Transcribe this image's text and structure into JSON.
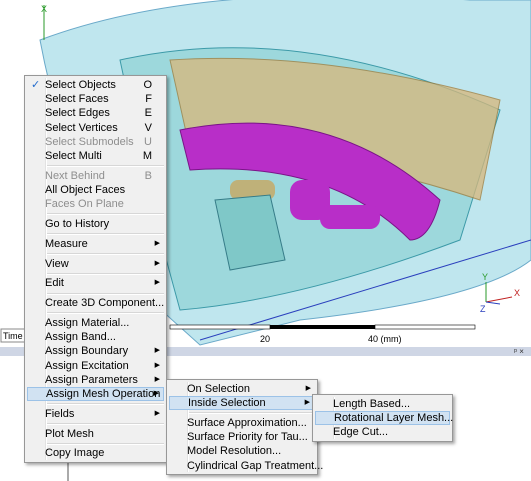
{
  "viewport": {
    "axis_labels": [
      "X",
      "Y",
      "X",
      "Z"
    ],
    "scale_labels": [
      "20",
      "40 (mm)"
    ],
    "status_label": "Time"
  },
  "context_menu": {
    "groups": [
      [
        {
          "label": "Select Objects",
          "shortcut": "O",
          "checked": true
        },
        {
          "label": "Select Faces",
          "shortcut": "F"
        },
        {
          "label": "Select Edges",
          "shortcut": "E"
        },
        {
          "label": "Select Vertices",
          "shortcut": "V"
        },
        {
          "label": "Select Submodels",
          "shortcut": "U",
          "enabled": false
        },
        {
          "label": "Select Multi",
          "shortcut": "M"
        }
      ],
      [
        {
          "label": "Next Behind",
          "shortcut": "B",
          "enabled": false
        },
        {
          "label": "All Object Faces"
        },
        {
          "label": "Faces On Plane",
          "enabled": false
        }
      ],
      [
        {
          "label": "Go to History"
        }
      ],
      [
        {
          "label": "Measure",
          "submenu": true
        }
      ],
      [
        {
          "label": "View",
          "submenu": true
        }
      ],
      [
        {
          "label": "Edit",
          "submenu": true
        }
      ],
      [
        {
          "label": "Create 3D Component..."
        }
      ],
      [
        {
          "label": "Assign Material..."
        },
        {
          "label": "Assign Band..."
        },
        {
          "label": "Assign Boundary",
          "submenu": true
        },
        {
          "label": "Assign Excitation",
          "submenu": true
        },
        {
          "label": "Assign Parameters",
          "submenu": true
        },
        {
          "label": "Assign Mesh Operation",
          "submenu": true,
          "highlighted": true
        }
      ],
      [
        {
          "label": "Fields",
          "submenu": true
        }
      ],
      [
        {
          "label": "Plot Mesh"
        }
      ],
      [
        {
          "label": "Copy Image"
        }
      ]
    ]
  },
  "mesh_menu": {
    "groups": [
      [
        {
          "label": "On Selection",
          "submenu": true
        },
        {
          "label": "Inside Selection",
          "submenu": true,
          "highlighted": true
        }
      ],
      [
        {
          "label": "Surface Approximation..."
        },
        {
          "label": "Surface Priority for Tau..."
        },
        {
          "label": "Model Resolution..."
        },
        {
          "label": "Cylindrical Gap Treatment..."
        }
      ]
    ]
  },
  "inside_menu": {
    "groups": [
      [
        {
          "label": "Length Based..."
        },
        {
          "label": "Rotational Layer Mesh...",
          "highlighted": true
        },
        {
          "label": "Edge Cut..."
        }
      ]
    ]
  }
}
